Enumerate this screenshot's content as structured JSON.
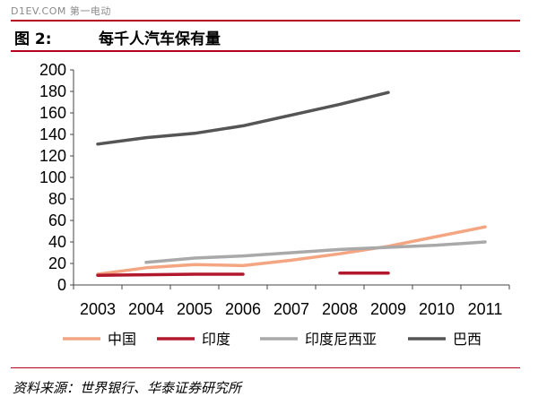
{
  "header": {
    "watermark": "D1EV.COM 第一电动",
    "figure_label": "图 2:",
    "figure_title": "每千人汽车保有量"
  },
  "footer": {
    "source": "资料来源：世界银行、华泰证券研究所"
  },
  "chart_data": {
    "type": "line",
    "title": "每千人汽车保有量",
    "xlabel": "",
    "ylabel": "",
    "categories": [
      "2003",
      "2004",
      "2005",
      "2006",
      "2007",
      "2008",
      "2009",
      "2010",
      "2011"
    ],
    "ylim": [
      0,
      200
    ],
    "yticks": [
      0,
      20,
      40,
      60,
      80,
      100,
      120,
      140,
      160,
      180,
      200
    ],
    "legend_position": "bottom",
    "grid": false,
    "series": [
      {
        "name": "中国",
        "color": "#f4a582",
        "values": [
          10,
          16,
          19,
          18,
          23,
          29,
          36,
          45,
          54
        ]
      },
      {
        "name": "印度",
        "color": "#b2182b",
        "values": [
          9,
          9.5,
          10,
          10,
          null,
          11,
          11,
          null,
          null
        ]
      },
      {
        "name": "印度尼西亚",
        "color": "#a9a9a9",
        "values": [
          null,
          21,
          25,
          27,
          30,
          33,
          35,
          37,
          40
        ]
      },
      {
        "name": "巴西",
        "color": "#555555",
        "values": [
          131,
          137,
          141,
          148,
          158,
          168,
          179,
          null,
          null
        ]
      }
    ]
  }
}
